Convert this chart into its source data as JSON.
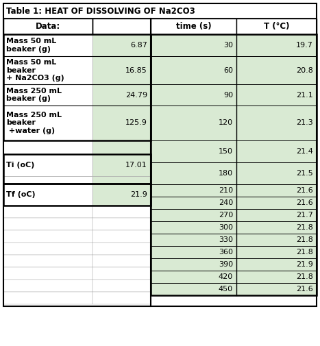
{
  "title": "Table 1: HEAT OF DISSOLVING OF Na2CO3",
  "left_labels": [
    "Mass 50 mL\nbeaker (g)",
    "Mass 50 mL\nbeaker\n+ Na2CO3 (g)",
    "Mass 250 mL\nbeaker (g)",
    "Mass 250 mL\nbeaker\n +water (g)",
    "",
    "Ti (oC)",
    "",
    "Tf (oC)"
  ],
  "left_values": [
    "6.87",
    "16.85",
    "24.79",
    "125.9",
    "",
    "17.01",
    "",
    "21.9"
  ],
  "time_values": [
    30,
    60,
    90,
    120,
    150,
    180,
    210,
    240,
    270,
    300,
    330,
    360,
    390,
    420,
    450
  ],
  "temp_values": [
    19.7,
    20.8,
    21.1,
    21.3,
    21.4,
    21.5,
    21.6,
    21.6,
    21.7,
    21.8,
    21.8,
    21.8,
    21.9,
    21.8,
    21.6
  ],
  "green_bg": "#d9ead3",
  "white_bg": "#ffffff",
  "border_color": "#000000",
  "light_border": "#aaaaaa",
  "title_fontsize": 8.5,
  "header_fontsize": 8.5,
  "cell_fontsize": 8.0,
  "fig_width": 4.67,
  "fig_height": 5.05
}
